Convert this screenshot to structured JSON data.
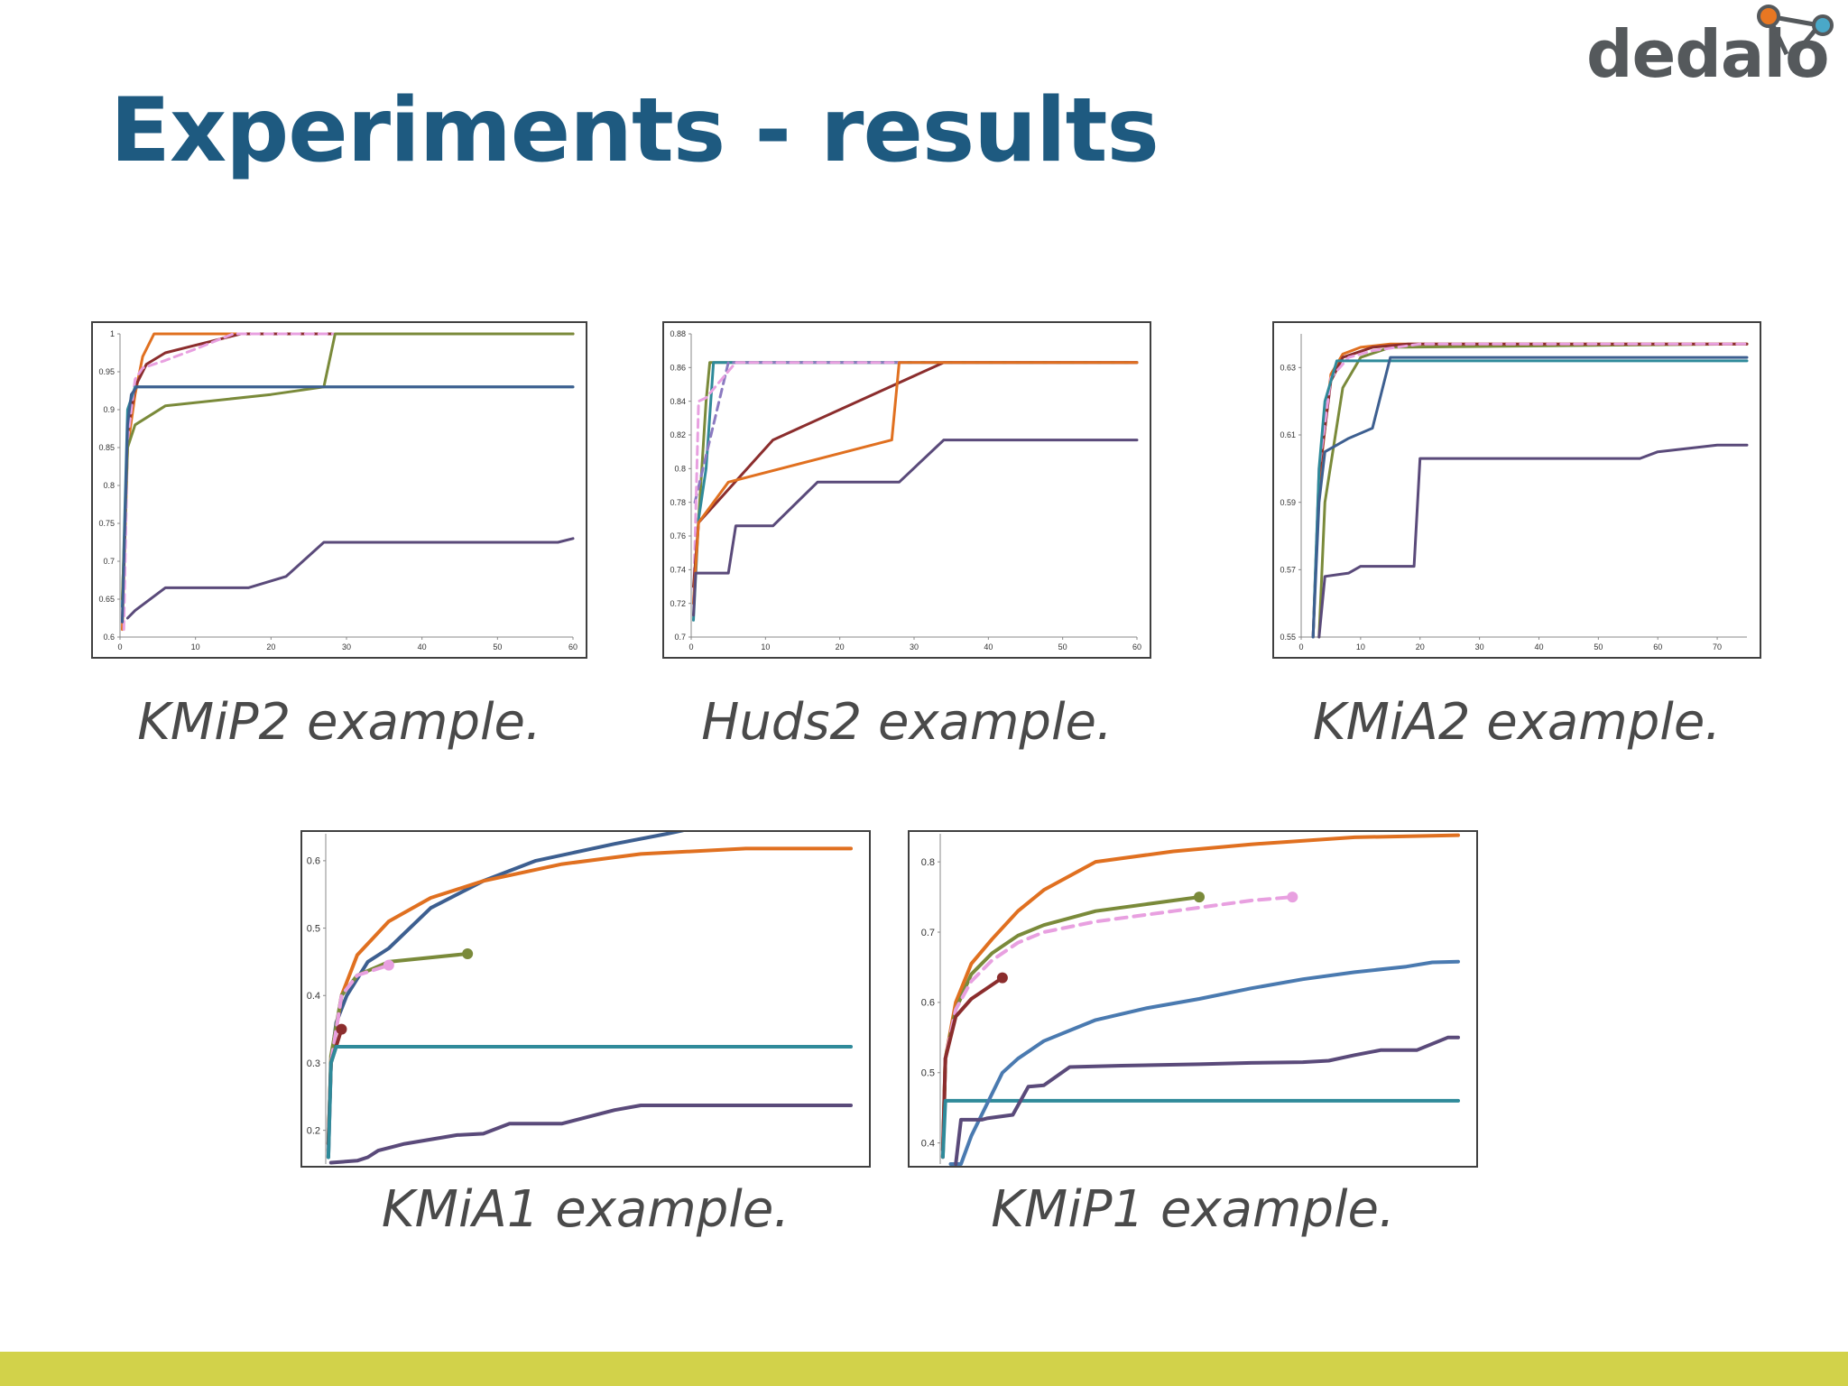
{
  "slide": {
    "title": "Experiments - results",
    "logo_text": "dedalo",
    "bar_color": "#d2d24a",
    "title_color": "#1e5a80"
  },
  "chart_data": [
    {
      "id": "kmip2",
      "type": "line",
      "caption": "KMiP2 example.",
      "xlim": [
        0,
        60
      ],
      "ylim": [
        0.6,
        1.0
      ],
      "xticks": [
        0,
        10,
        20,
        30,
        40,
        50,
        60
      ],
      "yticks": [
        0.6,
        0.65,
        0.7,
        0.75,
        0.8,
        0.85,
        0.9,
        0.95,
        1
      ],
      "ytick_labels": [
        "0.6",
        "0.65",
        "0.7",
        "0.75",
        "0.8",
        "0.85",
        "0.9",
        "0.95",
        "1"
      ],
      "series": [
        {
          "color": "#e07020",
          "x": [
            0.3,
            1,
            2,
            3,
            4.5,
            60
          ],
          "y": [
            0.61,
            0.85,
            0.92,
            0.97,
            1.0,
            1.0
          ]
        },
        {
          "color": "#8b2d2d",
          "x": [
            0.3,
            1,
            2,
            3.5,
            6,
            10,
            16,
            60
          ],
          "y": [
            0.62,
            0.87,
            0.93,
            0.96,
            0.975,
            0.985,
            1.0,
            1.0
          ]
        },
        {
          "color": "#e8a0e0",
          "dashed": true,
          "x": [
            0.5,
            1,
            2,
            3,
            6,
            10,
            15,
            60
          ],
          "y": [
            0.61,
            0.86,
            0.94,
            0.955,
            0.965,
            0.98,
            1.0,
            1.0
          ]
        },
        {
          "color": "#2f8a9a",
          "x": [
            0.3,
            1,
            2,
            60
          ],
          "y": [
            0.64,
            0.9,
            0.93,
            0.93
          ]
        },
        {
          "color": "#7a8a3a",
          "x": [
            0.3,
            1,
            2,
            6,
            20,
            27,
            28.5,
            60
          ],
          "y": [
            0.65,
            0.85,
            0.88,
            0.905,
            0.92,
            0.93,
            1.0,
            1.0
          ]
        },
        {
          "color": "#3d5f90",
          "x": [
            0.3,
            1,
            1.5,
            2.2,
            60
          ],
          "y": [
            0.62,
            0.88,
            0.92,
            0.93,
            0.93
          ]
        },
        {
          "color": "#5a4a7a",
          "x": [
            1,
            2,
            6,
            17,
            22,
            27,
            58,
            60
          ],
          "y": [
            0.625,
            0.635,
            0.665,
            0.665,
            0.68,
            0.725,
            0.725,
            0.73
          ]
        }
      ]
    },
    {
      "id": "huds2",
      "type": "line",
      "caption": "Huds2 example.",
      "xlim": [
        0,
        60
      ],
      "ylim": [
        0.7,
        0.88
      ],
      "xticks": [
        0,
        10,
        20,
        30,
        40,
        50,
        60
      ],
      "yticks": [
        0.7,
        0.72,
        0.74,
        0.76,
        0.78,
        0.8,
        0.82,
        0.84,
        0.86,
        0.88
      ],
      "ytick_labels": [
        "0.7",
        "0.72",
        "0.74",
        "0.76",
        "0.78",
        "0.8",
        "0.82",
        "0.84",
        "0.86",
        "0.88"
      ],
      "series": [
        {
          "color": "#7a8a3a",
          "x": [
            0.3,
            1,
            2,
            2.5,
            60
          ],
          "y": [
            0.72,
            0.77,
            0.84,
            0.863,
            0.863
          ]
        },
        {
          "color": "#2f8a9a",
          "x": [
            0.3,
            1,
            2,
            3,
            60
          ],
          "y": [
            0.71,
            0.77,
            0.8,
            0.863,
            0.863
          ]
        },
        {
          "color": "#8b7ac0",
          "dashed": true,
          "x": [
            0.5,
            5,
            60
          ],
          "y": [
            0.78,
            0.863,
            0.863
          ]
        },
        {
          "color": "#e8a0e0",
          "dashed": true,
          "x": [
            0.3,
            1,
            2,
            6,
            60
          ],
          "y": [
            0.72,
            0.84,
            0.842,
            0.863,
            0.863
          ]
        },
        {
          "color": "#8b2d2d",
          "x": [
            0.3,
            1,
            11,
            34,
            60
          ],
          "y": [
            0.73,
            0.768,
            0.817,
            0.863,
            0.863
          ]
        },
        {
          "color": "#e07020",
          "x": [
            0.3,
            1,
            5,
            27,
            28,
            60
          ],
          "y": [
            0.72,
            0.768,
            0.792,
            0.817,
            0.863,
            0.863
          ]
        },
        {
          "color": "#5a4a7a",
          "x": [
            0.3,
            0.6,
            5,
            6,
            11,
            17,
            28,
            34,
            60
          ],
          "y": [
            0.713,
            0.738,
            0.738,
            0.766,
            0.766,
            0.792,
            0.792,
            0.817,
            0.817
          ]
        }
      ]
    },
    {
      "id": "kmia2",
      "type": "line",
      "caption": "KMiA2 example.",
      "xlim": [
        0,
        75
      ],
      "ylim": [
        0.55,
        0.64
      ],
      "xticks": [
        0,
        10,
        20,
        30,
        40,
        50,
        60,
        70
      ],
      "yticks": [
        0.55,
        0.57,
        0.59,
        0.61,
        0.63
      ],
      "ytick_labels": [
        "0.55",
        "0.57",
        "0.59",
        "0.61",
        "0.63"
      ],
      "series": [
        {
          "color": "#7a8a3a",
          "x": [
            3,
            4,
            7,
            10,
            15,
            75
          ],
          "y": [
            0.55,
            0.59,
            0.624,
            0.633,
            0.636,
            0.637
          ]
        },
        {
          "color": "#e07020",
          "x": [
            2,
            3,
            5,
            7,
            10,
            15,
            75
          ],
          "y": [
            0.55,
            0.596,
            0.628,
            0.634,
            0.636,
            0.637,
            0.637
          ]
        },
        {
          "color": "#8b2d2d",
          "x": [
            2,
            3,
            5,
            7,
            12,
            18,
            75
          ],
          "y": [
            0.55,
            0.598,
            0.626,
            0.633,
            0.636,
            0.637,
            0.637
          ]
        },
        {
          "color": "#e8a0e0",
          "dashed": true,
          "x": [
            2,
            3,
            5,
            8,
            12,
            20,
            75
          ],
          "y": [
            0.55,
            0.6,
            0.627,
            0.633,
            0.635,
            0.637,
            0.637
          ]
        },
        {
          "color": "#2f8a9a",
          "x": [
            2,
            3,
            4,
            6,
            75
          ],
          "y": [
            0.55,
            0.6,
            0.62,
            0.632,
            0.632
          ]
        },
        {
          "color": "#3d5f90",
          "x": [
            2,
            3,
            4,
            8,
            12,
            15,
            75
          ],
          "y": [
            0.55,
            0.59,
            0.605,
            0.609,
            0.612,
            0.633,
            0.633
          ]
        },
        {
          "color": "#5a4a7a",
          "x": [
            3,
            4,
            8,
            10,
            19,
            20,
            57,
            60,
            70,
            75
          ],
          "y": [
            0.55,
            0.568,
            0.569,
            0.571,
            0.571,
            0.603,
            0.603,
            0.605,
            0.607,
            0.607
          ]
        }
      ]
    },
    {
      "id": "kmia1",
      "type": "line",
      "caption": "KMiA1 example.",
      "xlim": [
        0,
        100
      ],
      "ylim": [
        0.15,
        0.64
      ],
      "yticks": [
        0.2,
        0.3,
        0.4,
        0.5,
        0.6
      ],
      "ytick_labels": [
        "0.2",
        "0.3",
        "0.4",
        "0.5",
        "0.6"
      ],
      "series": [
        {
          "color": "#3d5f90",
          "x": [
            0.5,
            1,
            2,
            4,
            8,
            12,
            20,
            30,
            40,
            55,
            65,
            68
          ],
          "y": [
            0.16,
            0.3,
            0.36,
            0.4,
            0.45,
            0.47,
            0.53,
            0.57,
            0.6,
            0.625,
            0.64,
            0.645
          ]
        },
        {
          "color": "#e07020",
          "x": [
            0.5,
            1,
            3,
            6,
            12,
            20,
            30,
            45,
            60,
            80,
            100
          ],
          "y": [
            0.18,
            0.3,
            0.4,
            0.46,
            0.51,
            0.545,
            0.57,
            0.595,
            0.61,
            0.618,
            0.618
          ]
        },
        {
          "color": "#7a8a3a",
          "x": [
            0.5,
            1,
            3,
            6,
            12,
            27
          ],
          "y": [
            0.17,
            0.31,
            0.4,
            0.43,
            0.45,
            0.462
          ],
          "end_marker": true
        },
        {
          "color": "#e8a0e0",
          "dashed": true,
          "x": [
            0.5,
            1,
            3,
            6,
            12
          ],
          "y": [
            0.17,
            0.3,
            0.4,
            0.43,
            0.445
          ],
          "end_marker": true
        },
        {
          "color": "#8b2d2d",
          "x": [
            0.5,
            1,
            3
          ],
          "y": [
            0.18,
            0.3,
            0.35
          ],
          "end_marker": true
        },
        {
          "color": "#2f8a9a",
          "x": [
            0.5,
            1,
            2,
            100
          ],
          "y": [
            0.16,
            0.3,
            0.324,
            0.324
          ]
        },
        {
          "color": "#5a4a7a",
          "x": [
            1,
            6,
            8,
            10,
            15,
            25,
            30,
            35,
            45,
            50,
            55,
            60,
            100
          ],
          "y": [
            0.152,
            0.155,
            0.16,
            0.17,
            0.18,
            0.193,
            0.195,
            0.21,
            0.21,
            0.22,
            0.23,
            0.237,
            0.237
          ]
        }
      ]
    },
    {
      "id": "kmip1",
      "type": "line",
      "caption": "KMiP1 example.",
      "xlim": [
        0,
        100
      ],
      "ylim": [
        0.37,
        0.84
      ],
      "yticks": [
        0.4,
        0.5,
        0.6,
        0.7,
        0.8
      ],
      "ytick_labels": [
        "0.4",
        "0.5",
        "0.6",
        "0.7",
        "0.8"
      ],
      "series": [
        {
          "color": "#e07020",
          "x": [
            0.5,
            1,
            3,
            6,
            10,
            15,
            20,
            30,
            45,
            60,
            80,
            100
          ],
          "y": [
            0.38,
            0.52,
            0.6,
            0.655,
            0.69,
            0.73,
            0.76,
            0.8,
            0.815,
            0.825,
            0.835,
            0.838
          ]
        },
        {
          "color": "#7a8a3a",
          "x": [
            0.5,
            1,
            3,
            6,
            10,
            15,
            20,
            30,
            40,
            50
          ],
          "y": [
            0.38,
            0.52,
            0.59,
            0.64,
            0.67,
            0.695,
            0.71,
            0.73,
            0.74,
            0.75
          ],
          "end_marker": true
        },
        {
          "color": "#e8a0e0",
          "dashed": true,
          "x": [
            0.5,
            1,
            3,
            6,
            10,
            15,
            20,
            30,
            45,
            60,
            68
          ],
          "y": [
            0.38,
            0.52,
            0.59,
            0.63,
            0.66,
            0.685,
            0.7,
            0.715,
            0.73,
            0.745,
            0.75
          ],
          "end_marker": true
        },
        {
          "color": "#8b2d2d",
          "x": [
            0.5,
            1,
            3,
            6,
            12
          ],
          "y": [
            0.39,
            0.52,
            0.58,
            0.605,
            0.635
          ],
          "end_marker": true
        },
        {
          "color": "#2f8a9a",
          "x": [
            0.5,
            1,
            100
          ],
          "y": [
            0.38,
            0.46,
            0.46
          ]
        },
        {
          "color": "#4a7ab0",
          "x": [
            2,
            4,
            6,
            10,
            12,
            15,
            20,
            25,
            30,
            40,
            50,
            60,
            70,
            80,
            90,
            95,
            100
          ],
          "y": [
            0.37,
            0.37,
            0.41,
            0.47,
            0.5,
            0.52,
            0.545,
            0.56,
            0.575,
            0.592,
            0.605,
            0.62,
            0.633,
            0.643,
            0.651,
            0.657,
            0.658
          ]
        },
        {
          "color": "#5a4a7a",
          "x": [
            3,
            4,
            8,
            9,
            14,
            17,
            20,
            25,
            35,
            50,
            60,
            70,
            75,
            80,
            85,
            92,
            98,
            100
          ],
          "y": [
            0.37,
            0.433,
            0.433,
            0.435,
            0.44,
            0.48,
            0.482,
            0.508,
            0.51,
            0.512,
            0.514,
            0.515,
            0.517,
            0.525,
            0.532,
            0.532,
            0.55,
            0.55
          ]
        }
      ]
    }
  ]
}
